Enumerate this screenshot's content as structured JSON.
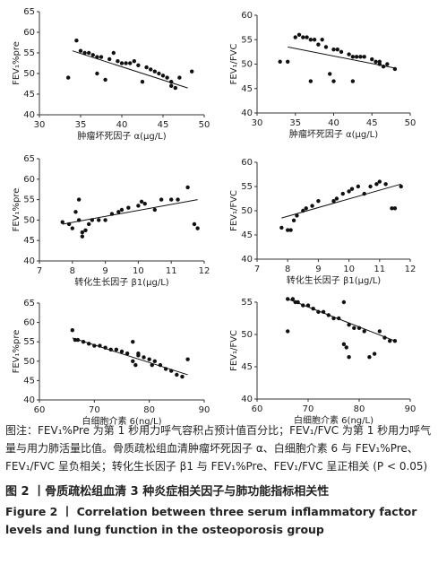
{
  "chart_data": [
    {
      "type": "scatter",
      "xlabel": "肿瘤坏死因子 α(μg/L)",
      "ylabel": "FEV₁%pre",
      "color": "#111",
      "xlim": [
        30,
        50
      ],
      "xticks": [
        30,
        35,
        40,
        45,
        50
      ],
      "ylim": [
        40,
        65
      ],
      "yticks": [
        40,
        45,
        50,
        55,
        60,
        65
      ],
      "x": [
        33.5,
        34.5,
        35,
        35.5,
        36,
        36.5,
        37,
        37,
        37.5,
        38,
        38.5,
        39,
        39.5,
        40,
        40.5,
        41,
        41.5,
        42,
        42.5,
        43,
        43.5,
        44,
        44.5,
        45,
        45.5,
        46,
        46,
        46.5,
        47,
        48.5
      ],
      "values": [
        49,
        58,
        55.5,
        55,
        55,
        54.5,
        50,
        54,
        54,
        48.5,
        53.5,
        55,
        53,
        52.5,
        52.5,
        52.5,
        53,
        52,
        48,
        51.5,
        51,
        50.5,
        50,
        49.5,
        49,
        48,
        47,
        46.5,
        49,
        50.5
      ],
      "trendline": {
        "x": [
          34,
          48
        ],
        "values": [
          55.5,
          46.5
        ]
      }
    },
    {
      "type": "scatter",
      "xlabel": "肿瘤坏死因子 α(μg/L)",
      "ylabel": "FEV₁/FVC",
      "color": "#111",
      "xlim": [
        30,
        50
      ],
      "xticks": [
        30,
        35,
        40,
        45,
        50
      ],
      "ylim": [
        40,
        60
      ],
      "yticks": [
        40,
        45,
        50,
        55,
        60
      ],
      "x": [
        33,
        34,
        35,
        35.5,
        36,
        36.5,
        37,
        37,
        37.5,
        38,
        38.5,
        39,
        39.5,
        40,
        40,
        40.5,
        41,
        42,
        42.5,
        42.5,
        43,
        43.5,
        44,
        45,
        45.5,
        46,
        46,
        46.5,
        47,
        48
      ],
      "values": [
        50.5,
        50.5,
        55.5,
        56,
        55.5,
        55.5,
        55,
        46.5,
        55,
        54,
        55,
        53.5,
        48,
        53,
        46.5,
        53,
        52.5,
        52,
        51.5,
        46.5,
        51.5,
        51.5,
        51.5,
        51,
        50.5,
        50.5,
        50,
        49.5,
        50,
        49
      ],
      "trendline": {
        "x": [
          34,
          48
        ],
        "values": [
          53.5,
          49.2
        ]
      }
    },
    {
      "type": "scatter",
      "xlabel": "转化生长因子 β1(μg/L)",
      "ylabel": "FEV₁%pre",
      "color": "#111",
      "xlim": [
        7,
        12
      ],
      "xticks": [
        7,
        8,
        9,
        10,
        11,
        12
      ],
      "ylim": [
        40,
        65
      ],
      "yticks": [
        40,
        45,
        50,
        55,
        60,
        65
      ],
      "x": [
        7.7,
        7.9,
        8,
        8.1,
        8.2,
        8.2,
        8.3,
        8.3,
        8.4,
        8.5,
        8.6,
        8.8,
        9,
        9.2,
        9.4,
        9.5,
        9.7,
        10,
        10.1,
        10.2,
        10.5,
        10.7,
        11,
        11.2,
        11.5,
        11.7,
        11.8
      ],
      "values": [
        49.5,
        49,
        48,
        52,
        55,
        50,
        47,
        46,
        47.5,
        49,
        50,
        50,
        50,
        51.5,
        52,
        52.5,
        53,
        53.5,
        54.5,
        54,
        52.5,
        55,
        55,
        55,
        58,
        49,
        48
      ],
      "trendline": {
        "x": [
          7.7,
          11.8
        ],
        "values": [
          49,
          55
        ]
      }
    },
    {
      "type": "scatter",
      "xlabel": "转化生长因子 β1(μg/L)",
      "ylabel": "FEV₁/FVC",
      "color": "#111",
      "xlim": [
        7,
        12
      ],
      "xticks": [
        7,
        8,
        9,
        10,
        11,
        12
      ],
      "ylim": [
        40,
        60
      ],
      "yticks": [
        40,
        45,
        50,
        55,
        60
      ],
      "x": [
        7.8,
        8,
        8.1,
        8.2,
        8.3,
        8.5,
        8.6,
        8.8,
        9,
        9.5,
        9.6,
        9.8,
        10,
        10.1,
        10.3,
        10.5,
        10.7,
        10.9,
        11,
        11.2,
        11.4,
        11.5,
        11.7
      ],
      "values": [
        46.5,
        46,
        46,
        48,
        49,
        50,
        50.5,
        51,
        52,
        52,
        52.5,
        53.5,
        54,
        54.5,
        55,
        53.5,
        55,
        55.5,
        56,
        55.5,
        50.5,
        50.5,
        55
      ],
      "trendline": {
        "x": [
          7.8,
          11.7
        ],
        "values": [
          48.5,
          55.5
        ]
      }
    },
    {
      "type": "scatter",
      "xlabel": "白细胞介素 6(ng/L)",
      "ylabel": "FEV₁%pre",
      "color": "#111",
      "xlim": [
        60,
        90
      ],
      "xticks": [
        60,
        70,
        80,
        90
      ],
      "ylim": [
        40,
        65
      ],
      "yticks": [
        40,
        45,
        50,
        55,
        60,
        65
      ],
      "x": [
        66,
        66.5,
        67,
        68,
        69,
        70,
        71,
        72,
        73,
        74,
        75,
        76,
        77,
        77,
        77.5,
        78,
        78,
        79,
        80,
        80.5,
        81,
        82,
        83,
        84,
        85,
        86,
        87
      ],
      "values": [
        58,
        55.5,
        55.5,
        55,
        54.5,
        54,
        54,
        53.5,
        53,
        53,
        52.5,
        52,
        55,
        50,
        49,
        51.5,
        52,
        51,
        50.5,
        49,
        50,
        49,
        48,
        47.5,
        46.5,
        46,
        50.5
      ],
      "trendline": {
        "x": [
          66,
          87
        ],
        "values": [
          56,
          46.5
        ]
      }
    },
    {
      "type": "scatter",
      "xlabel": "白细胞介素 6(ng/L)",
      "ylabel": "FEV₁/FVC",
      "color": "#111",
      "xlim": [
        60,
        90
      ],
      "xticks": [
        60,
        70,
        80,
        90
      ],
      "ylim": [
        40,
        55
      ],
      "yticks": [
        40,
        45,
        50,
        55
      ],
      "x": [
        66,
        66,
        67,
        67.5,
        68,
        69,
        70,
        71,
        72,
        73,
        74,
        75,
        76,
        77,
        77,
        77.5,
        78,
        78,
        79,
        80,
        81,
        82,
        83,
        84,
        85,
        86,
        87
      ],
      "values": [
        50.5,
        55.5,
        55.5,
        55,
        55,
        54.5,
        54.5,
        54,
        53.5,
        53.5,
        53,
        52.5,
        52.5,
        55,
        48.5,
        48,
        51.5,
        46.5,
        51,
        51,
        50.5,
        46.5,
        47,
        50.5,
        49.5,
        49,
        49
      ],
      "trendline": {
        "x": [
          66,
          87
        ],
        "values": [
          55.5,
          49
        ]
      }
    }
  ],
  "caption": {
    "note": "图注：FEV₁%Pre 为第 1 秒用力呼气容积占预计值百分比；FEV₁/FVC 为第 1 秒用力呼气量与用力肺活量比值。骨质疏松组血清肿瘤坏死因子 α、白细胞介素 6 与 FEV₁%Pre、FEV₁/FVC 呈负相关；转化生长因子 β1 与 FEV₁%Pre、FEV₁/FVC 呈正相关 (P < 0.05)",
    "title_cn": "图 2 丨骨质疏松组血清 3 种炎症相关因子与肺功能指标相关性",
    "title_en": "Figure 2 丨 Correlation between three serum inflammatory factor levels and lung function in the osteoporosis group"
  }
}
